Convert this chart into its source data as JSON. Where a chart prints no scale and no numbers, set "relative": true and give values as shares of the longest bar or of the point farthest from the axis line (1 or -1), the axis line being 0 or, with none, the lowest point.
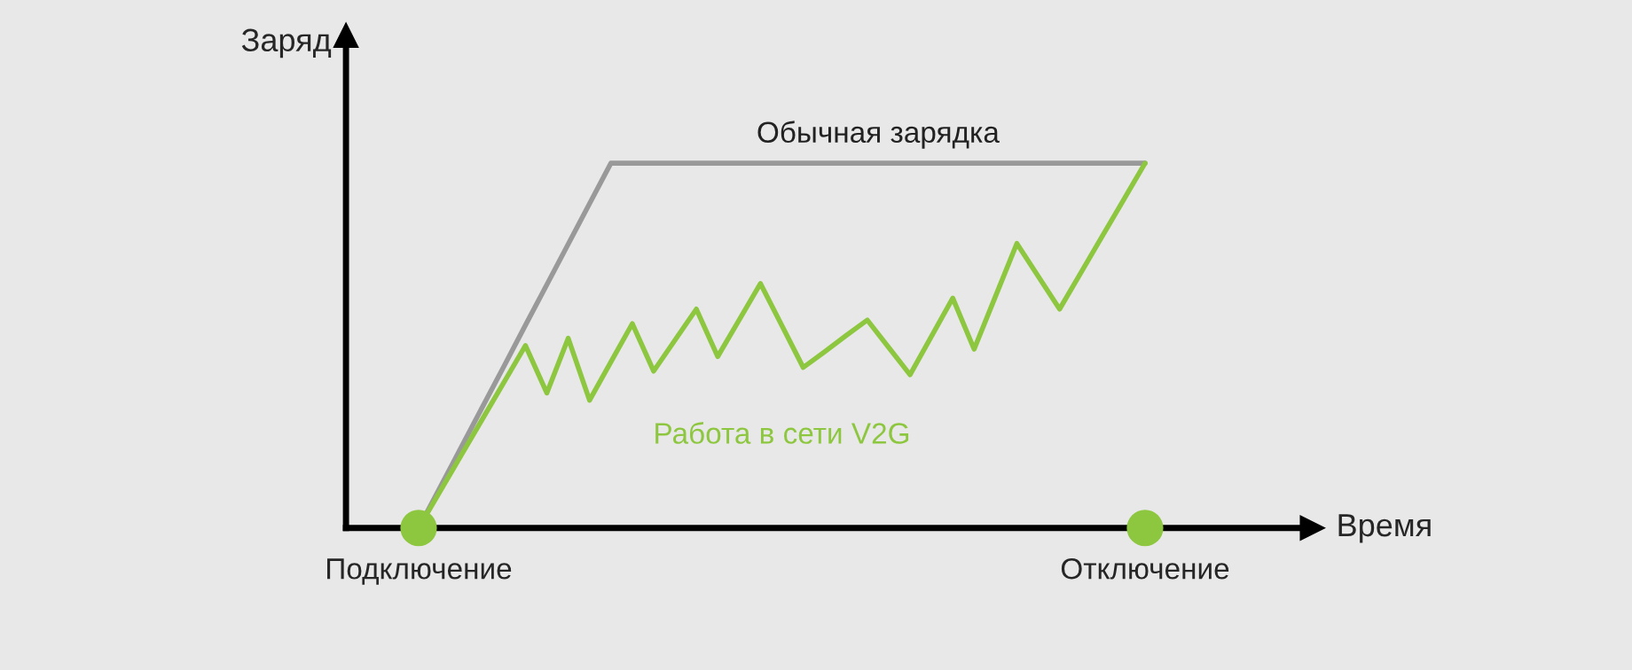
{
  "chart_data": {
    "type": "line",
    "relative": true,
    "xlabel": "Время",
    "ylabel": "Заряд",
    "tick_labels": "x",
    "categories": [
      "Подключение",
      null,
      null,
      null,
      null,
      null,
      null,
      null,
      null,
      null,
      null,
      null,
      null,
      null,
      null,
      null,
      null,
      null,
      null,
      null,
      null,
      null,
      null,
      null,
      null,
      null,
      null,
      null,
      null,
      null,
      null,
      null,
      null,
      null,
      "Отключение"
    ],
    "series": [
      {
        "name": "Обычная зарядка",
        "color": "#999999",
        "values": [
          0,
          0.111,
          0.222,
          0.333,
          0.444,
          0.556,
          0.667,
          0.778,
          0.889,
          1,
          1,
          1,
          1,
          1,
          1,
          1,
          1,
          1,
          1,
          1,
          1,
          1,
          1,
          1,
          1,
          1,
          1,
          1,
          1,
          1,
          1,
          1,
          1,
          1,
          1
        ]
      },
      {
        "name": "Работа в сети V2G",
        "color": "#8dc63f",
        "values": [
          0,
          0.1,
          0.2,
          0.3,
          0.4,
          0.5,
          0.37,
          0.52,
          0.35,
          0.455,
          0.56,
          0.43,
          0.515,
          0.6,
          0.47,
          0.57,
          0.67,
          0.555,
          0.44,
          0.483,
          0.527,
          0.57,
          0.495,
          0.42,
          0.525,
          0.63,
          0.49,
          0.635,
          0.78,
          0.69,
          0.6,
          0.7,
          0.8,
          0.9,
          1
        ]
      },
      {
        "type": "scatter",
        "color": "#8dc63f",
        "values": [
          0,
          null,
          null,
          null,
          null,
          null,
          null,
          null,
          null,
          null,
          null,
          null,
          null,
          null,
          null,
          null,
          null,
          null,
          null,
          null,
          null,
          null,
          null,
          null,
          null,
          null,
          null,
          null,
          null,
          null,
          null,
          null,
          null,
          null,
          0
        ]
      }
    ]
  }
}
